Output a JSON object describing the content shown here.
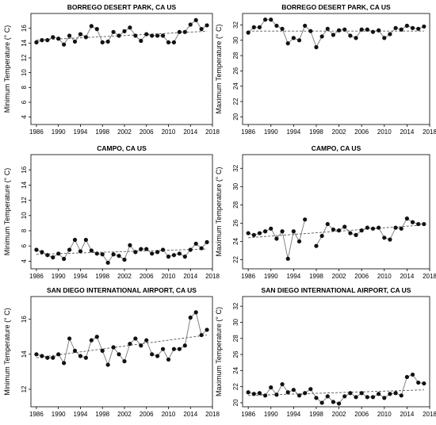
{
  "chart_data": [
    {
      "type": "line",
      "title": "BORREGO DESERT PARK, CA US",
      "xlabel": "",
      "ylabel": "Minimum Temperature (° C)",
      "xlim": [
        1985,
        2018
      ],
      "ylim": [
        3,
        18
      ],
      "xticks": [
        1986,
        1990,
        1994,
        1998,
        2002,
        2006,
        2010,
        2014,
        2018
      ],
      "yticks": [
        4,
        6,
        8,
        10,
        12,
        14,
        16
      ],
      "grid": false,
      "x": [
        1986,
        1987,
        1988,
        1989,
        1990,
        1991,
        1992,
        1993,
        1994,
        1995,
        1996,
        1997,
        1998,
        1999,
        2000,
        2001,
        2002,
        2003,
        2004,
        2005,
        2006,
        2007,
        2008,
        2009,
        2010,
        2011,
        2012,
        2013,
        2014,
        2015,
        2016,
        2017
      ],
      "series": [
        {
          "values": [
            14.1,
            14.4,
            14.4,
            14.8,
            14.6,
            13.8,
            15.0,
            14.2,
            15.2,
            14.8,
            16.3,
            15.9,
            14.1,
            14.2,
            15.5,
            15.0,
            15.6,
            16.1,
            15.0,
            14.3,
            15.2,
            15.0,
            15.0,
            15.0,
            14.1,
            14.1,
            15.5,
            15.5,
            16.5,
            17.1,
            15.9,
            16.4
          ]
        }
      ],
      "trendline": {
        "style": "dashed",
        "y": [
          14.4,
          15.6
        ]
      }
    },
    {
      "type": "line",
      "title": "BORREGO DESERT PARK, CA US",
      "xlabel": "",
      "ylabel": "Maximum Temperature (° C)",
      "xlim": [
        1985,
        2018
      ],
      "ylim": [
        19,
        33.5
      ],
      "xticks": [
        1986,
        1990,
        1994,
        1998,
        2002,
        2006,
        2010,
        2014,
        2018
      ],
      "yticks": [
        20,
        22,
        24,
        26,
        28,
        30,
        32
      ],
      "grid": false,
      "x": [
        1986,
        1987,
        1988,
        1989,
        1990,
        1991,
        1992,
        1993,
        1994,
        1995,
        1996,
        1997,
        1998,
        1999,
        2000,
        2001,
        2002,
        2003,
        2004,
        2005,
        2006,
        2007,
        2008,
        2009,
        2010,
        2011,
        2012,
        2013,
        2014,
        2015,
        2016,
        2017
      ],
      "series": [
        {
          "values": [
            31.0,
            31.7,
            31.7,
            32.7,
            32.7,
            31.9,
            31.5,
            29.6,
            30.3,
            30.0,
            31.9,
            31.2,
            29.1,
            30.5,
            31.5,
            30.7,
            31.3,
            31.4,
            30.6,
            30.3,
            31.4,
            31.4,
            31.1,
            31.3,
            30.3,
            30.8,
            31.6,
            31.4,
            31.9,
            31.6,
            31.5,
            31.8
          ]
        }
      ],
      "trendline": {
        "style": "dashed",
        "y": [
          31.2,
          31.2
        ]
      }
    },
    {
      "type": "line",
      "title": "CAMPO, CA US",
      "xlabel": "",
      "ylabel": "Minimum Temperature (° C)",
      "xlim": [
        1985,
        2018
      ],
      "ylim": [
        3,
        18
      ],
      "xticks": [
        1986,
        1990,
        1994,
        1998,
        2002,
        2006,
        2010,
        2014,
        2018
      ],
      "yticks": [
        4,
        6,
        8,
        10,
        12,
        14,
        16
      ],
      "grid": false,
      "x": [
        1986,
        1987,
        1988,
        1989,
        1990,
        1991,
        1992,
        1993,
        1994,
        1995,
        1996,
        1997,
        1998,
        1999,
        2000,
        2001,
        2002,
        2003,
        2004,
        2005,
        2006,
        2007,
        2008,
        2009,
        2010,
        2011,
        2012,
        2013,
        2014,
        2015,
        2016,
        2017
      ],
      "series": [
        {
          "values": [
            5.5,
            5.2,
            4.8,
            4.5,
            5.0,
            4.3,
            5.5,
            6.8,
            5.3,
            6.8,
            5.4,
            5.0,
            4.9,
            3.8,
            4.9,
            4.7,
            4.2,
            6.1,
            5.2,
            5.6,
            5.6,
            5.0,
            5.2,
            5.5,
            4.6,
            4.8,
            5.0,
            4.6,
            5.5,
            6.3,
            5.7,
            6.5
          ]
        }
      ],
      "trendline": {
        "style": "dashed",
        "y": [
          4.9,
          5.6
        ]
      }
    },
    {
      "type": "line",
      "title": "CAMPO, CA US",
      "xlabel": "",
      "ylabel": "Maximum Temperature (° C)",
      "xlim": [
        1985,
        2018
      ],
      "ylim": [
        21,
        33.5
      ],
      "xticks": [
        1986,
        1990,
        1994,
        1998,
        2002,
        2006,
        2010,
        2014,
        2018
      ],
      "yticks": [
        22,
        24,
        26,
        28,
        30,
        32
      ],
      "grid": false,
      "x": [
        1986,
        1987,
        1988,
        1989,
        1990,
        1991,
        1992,
        1993,
        1994,
        1995,
        1996,
        1997,
        1998,
        1999,
        2000,
        2001,
        2002,
        2003,
        2004,
        2005,
        2006,
        2007,
        2008,
        2009,
        2010,
        2011,
        2012,
        2013,
        2014,
        2015,
        2016,
        2017
      ],
      "series": [
        {
          "values": [
            24.9,
            24.7,
            24.9,
            25.1,
            25.4,
            24.3,
            25.1,
            22.1,
            25.1,
            24.0,
            26.4,
            null,
            23.5,
            24.6,
            25.9,
            25.3,
            25.2,
            25.6,
            24.9,
            24.7,
            25.2,
            25.5,
            25.4,
            25.5,
            24.4,
            24.2,
            25.5,
            25.4,
            26.5,
            26.1,
            25.9,
            25.9
          ]
        }
      ],
      "trendline": {
        "style": "dashed",
        "y": [
          24.4,
          25.8
        ]
      }
    },
    {
      "type": "line",
      "title": "SAN DIEGO INTERNATIONAL AIRPORT, CA US",
      "xlabel": "",
      "ylabel": "Minimum Temperature (° C)",
      "xlim": [
        1985,
        2018
      ],
      "ylim": [
        11,
        17.3
      ],
      "xticks": [
        1986,
        1990,
        1994,
        1998,
        2002,
        2006,
        2010,
        2014,
        2018
      ],
      "yticks": [
        12,
        14,
        16
      ],
      "grid": false,
      "x": [
        1986,
        1987,
        1988,
        1989,
        1990,
        1991,
        1992,
        1993,
        1994,
        1995,
        1996,
        1997,
        1998,
        1999,
        2000,
        2001,
        2002,
        2003,
        2004,
        2005,
        2006,
        2007,
        2008,
        2009,
        2010,
        2011,
        2012,
        2013,
        2014,
        2015,
        2016,
        2017
      ],
      "series": [
        {
          "values": [
            14.0,
            13.9,
            13.8,
            13.8,
            14.0,
            13.5,
            14.9,
            14.2,
            13.9,
            13.8,
            14.8,
            15.0,
            14.2,
            13.4,
            14.4,
            14.0,
            13.6,
            14.6,
            14.9,
            14.5,
            14.8,
            14.0,
            13.9,
            14.3,
            13.7,
            14.3,
            14.3,
            14.5,
            16.1,
            16.4,
            15.1,
            15.4
          ]
        }
      ],
      "trendline": {
        "style": "dashed",
        "y": [
          13.8,
          15.1
        ]
      }
    },
    {
      "type": "line",
      "title": "SAN DIEGO INTERNATIONAL AIRPORT, CA US",
      "xlabel": "",
      "ylabel": "Maximum Temperature (° C)",
      "xlim": [
        1985,
        2018
      ],
      "ylim": [
        19.5,
        33.2
      ],
      "xticks": [
        1986,
        1990,
        1994,
        1998,
        2002,
        2006,
        2010,
        2014,
        2018
      ],
      "yticks": [
        20,
        22,
        24,
        26,
        28,
        30,
        32
      ],
      "grid": false,
      "x": [
        1986,
        1987,
        1988,
        1989,
        1990,
        1991,
        1992,
        1993,
        1994,
        1995,
        1996,
        1997,
        1998,
        1999,
        2000,
        2001,
        2002,
        2003,
        2004,
        2005,
        2006,
        2007,
        2008,
        2009,
        2010,
        2011,
        2012,
        2013,
        2014,
        2015,
        2016,
        2017
      ],
      "series": [
        {
          "values": [
            21.3,
            21.1,
            21.2,
            20.9,
            21.9,
            21.0,
            22.3,
            21.3,
            21.6,
            20.9,
            21.2,
            21.7,
            20.6,
            20.0,
            20.8,
            20.1,
            19.9,
            20.8,
            21.2,
            20.7,
            21.2,
            20.7,
            20.7,
            21.1,
            20.6,
            21.1,
            21.2,
            20.9,
            23.2,
            23.5,
            22.5,
            22.4
          ]
        }
      ],
      "trendline": {
        "style": "dashed",
        "y": [
          20.9,
          21.6
        ]
      }
    }
  ]
}
